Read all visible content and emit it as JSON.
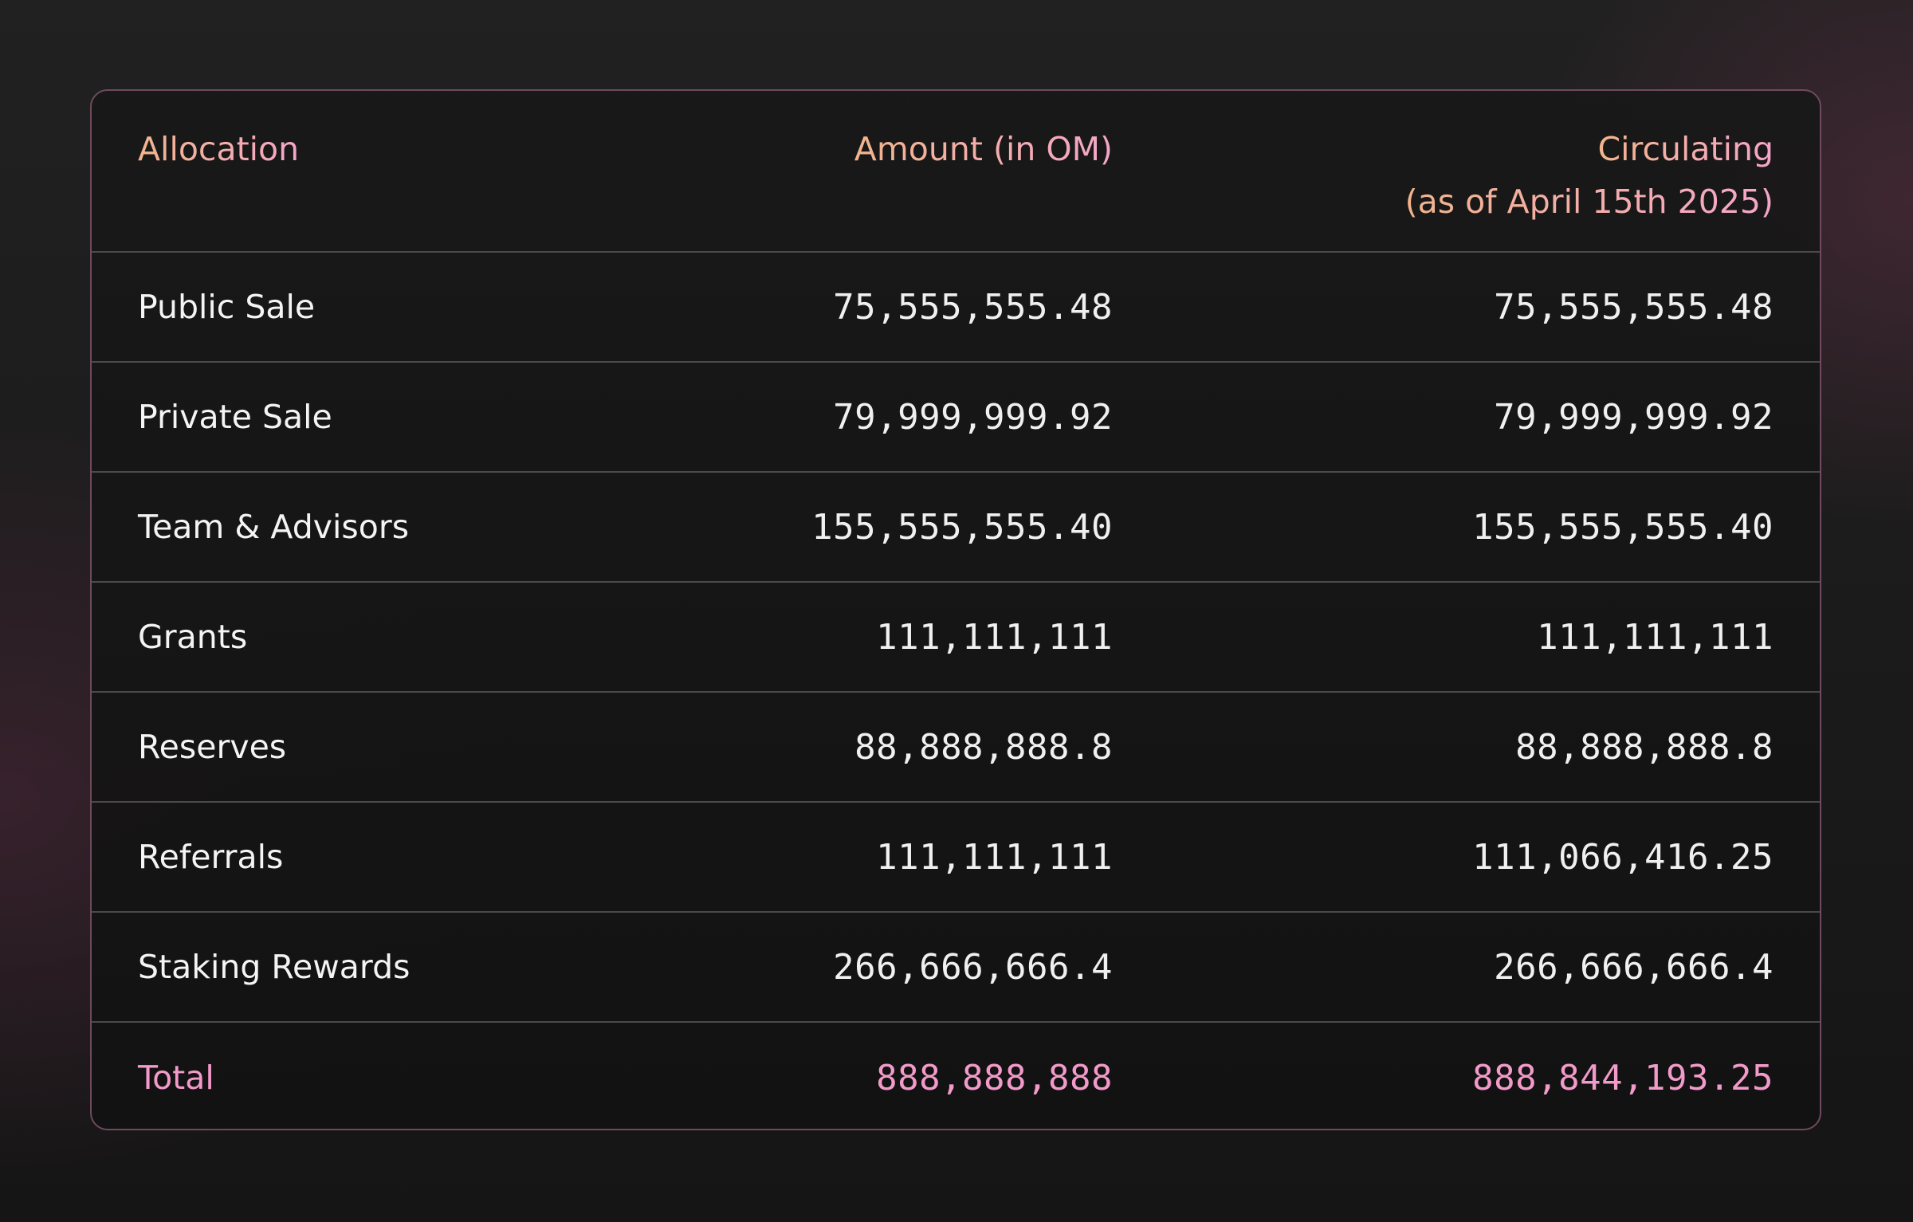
{
  "table": {
    "headers": {
      "allocation": "Allocation",
      "amount": "Amount (in OM)",
      "circulating_line1": "Circulating",
      "circulating_line2": "(as of April 15th 2025)"
    },
    "rows": [
      {
        "allocation": "Public Sale",
        "amount": "75,555,555.48",
        "circulating": "75,555,555.48"
      },
      {
        "allocation": "Private Sale",
        "amount": "79,999,999.92",
        "circulating": "79,999,999.92"
      },
      {
        "allocation": "Team & Advisors",
        "amount": "155,555,555.40",
        "circulating": "155,555,555.40"
      },
      {
        "allocation": "Grants",
        "amount": "111,111,111",
        "circulating": "111,111,111"
      },
      {
        "allocation": "Reserves",
        "amount": "88,888,888.8",
        "circulating": "88,888,888.8"
      },
      {
        "allocation": "Referrals",
        "amount": "111,111,111",
        "circulating": "111,066,416.25"
      },
      {
        "allocation": "Staking Rewards",
        "amount": "266,666,666.4",
        "circulating": "266,666,666.4"
      }
    ],
    "total": {
      "allocation": "Total",
      "amount": "888,888,888",
      "circulating": "888,844,193.25"
    }
  },
  "colors": {
    "header_gradient_start": "#f2b48c",
    "header_gradient_end": "#f5a6c9",
    "total_text": "#f29ac9",
    "card_border": "#6e4a5c",
    "row_divider": "#4a4a4a"
  }
}
